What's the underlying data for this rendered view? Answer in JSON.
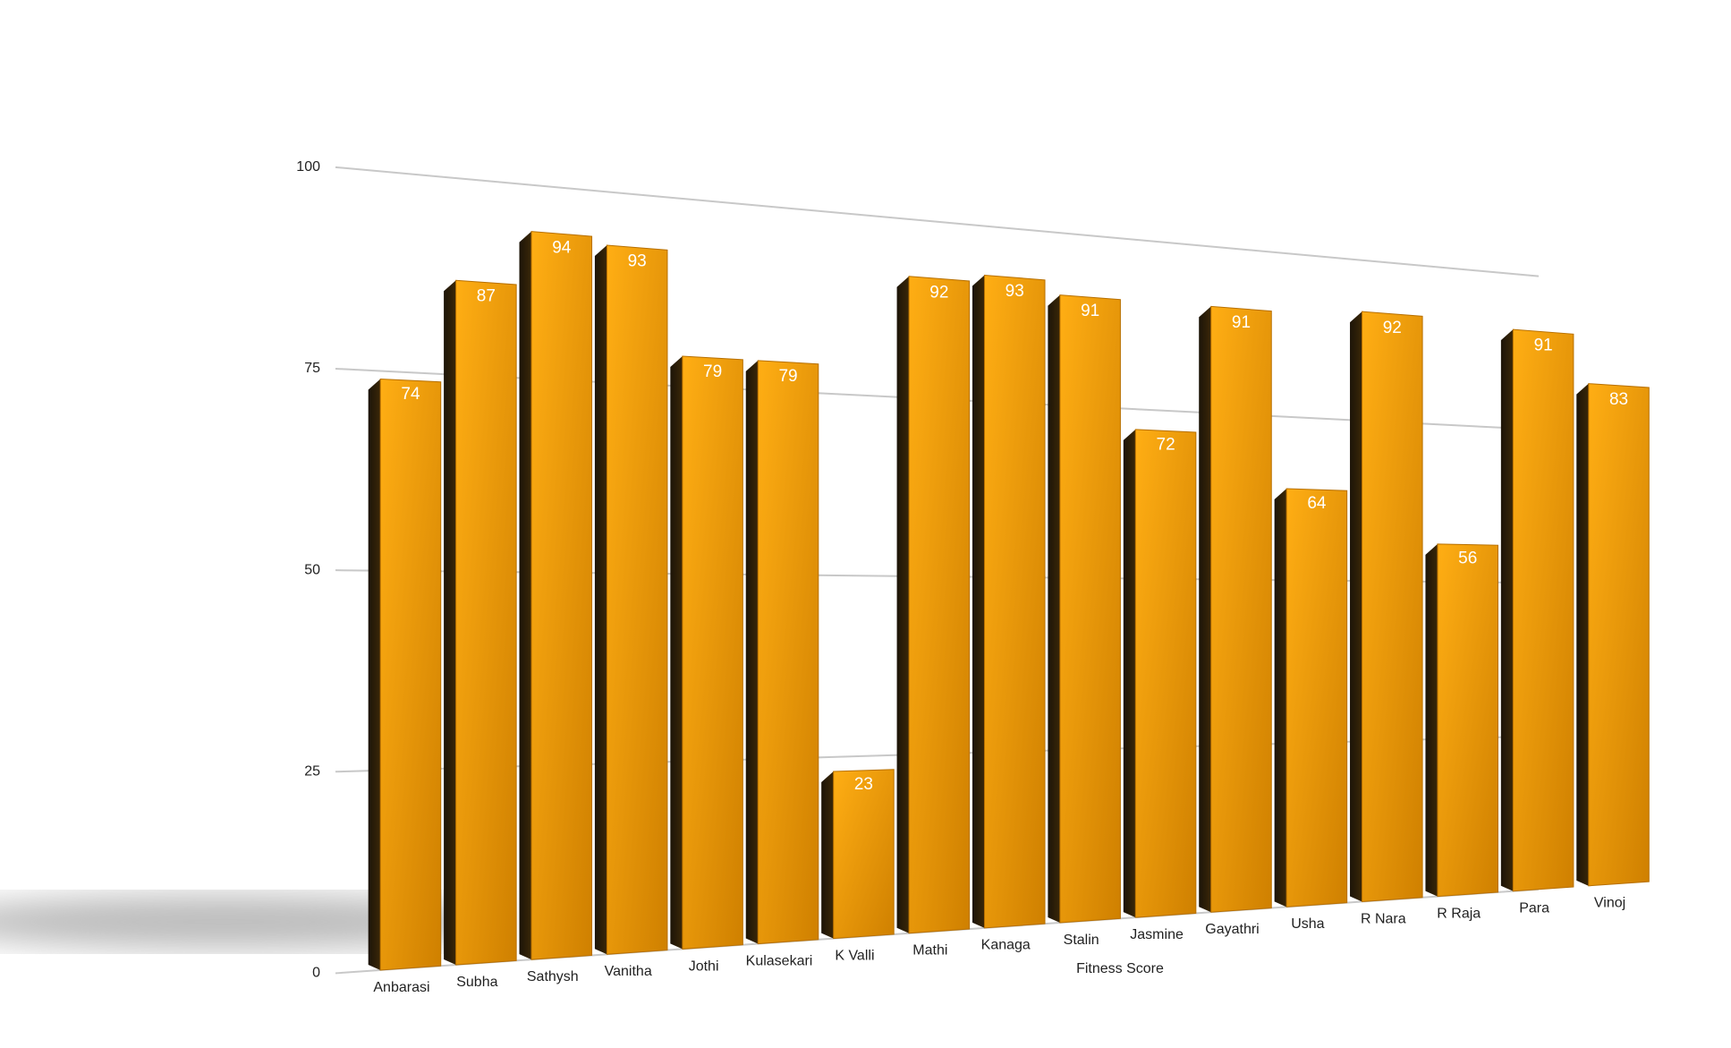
{
  "chart_data": {
    "type": "bar",
    "x_label": "Fitness Score",
    "categories": [
      "Anbarasi",
      "Subha",
      "Sathysh",
      "Vanitha",
      "Jothi",
      "Kulasekari",
      "K Valli",
      "Mathi",
      "Kanaga",
      "Stalin",
      "Jasmine",
      "Gayathri",
      "Usha",
      "R Nara",
      "R Raja",
      "Para",
      "Vinoj"
    ],
    "values": [
      74,
      87,
      94,
      93,
      79,
      79,
      23,
      92,
      93,
      91,
      72,
      91,
      64,
      92,
      56,
      91,
      83
    ],
    "color": "#f5a00f",
    "ylim": [
      0,
      100
    ],
    "yticks": [
      0,
      25,
      50,
      75,
      100
    ],
    "grid": true
  }
}
